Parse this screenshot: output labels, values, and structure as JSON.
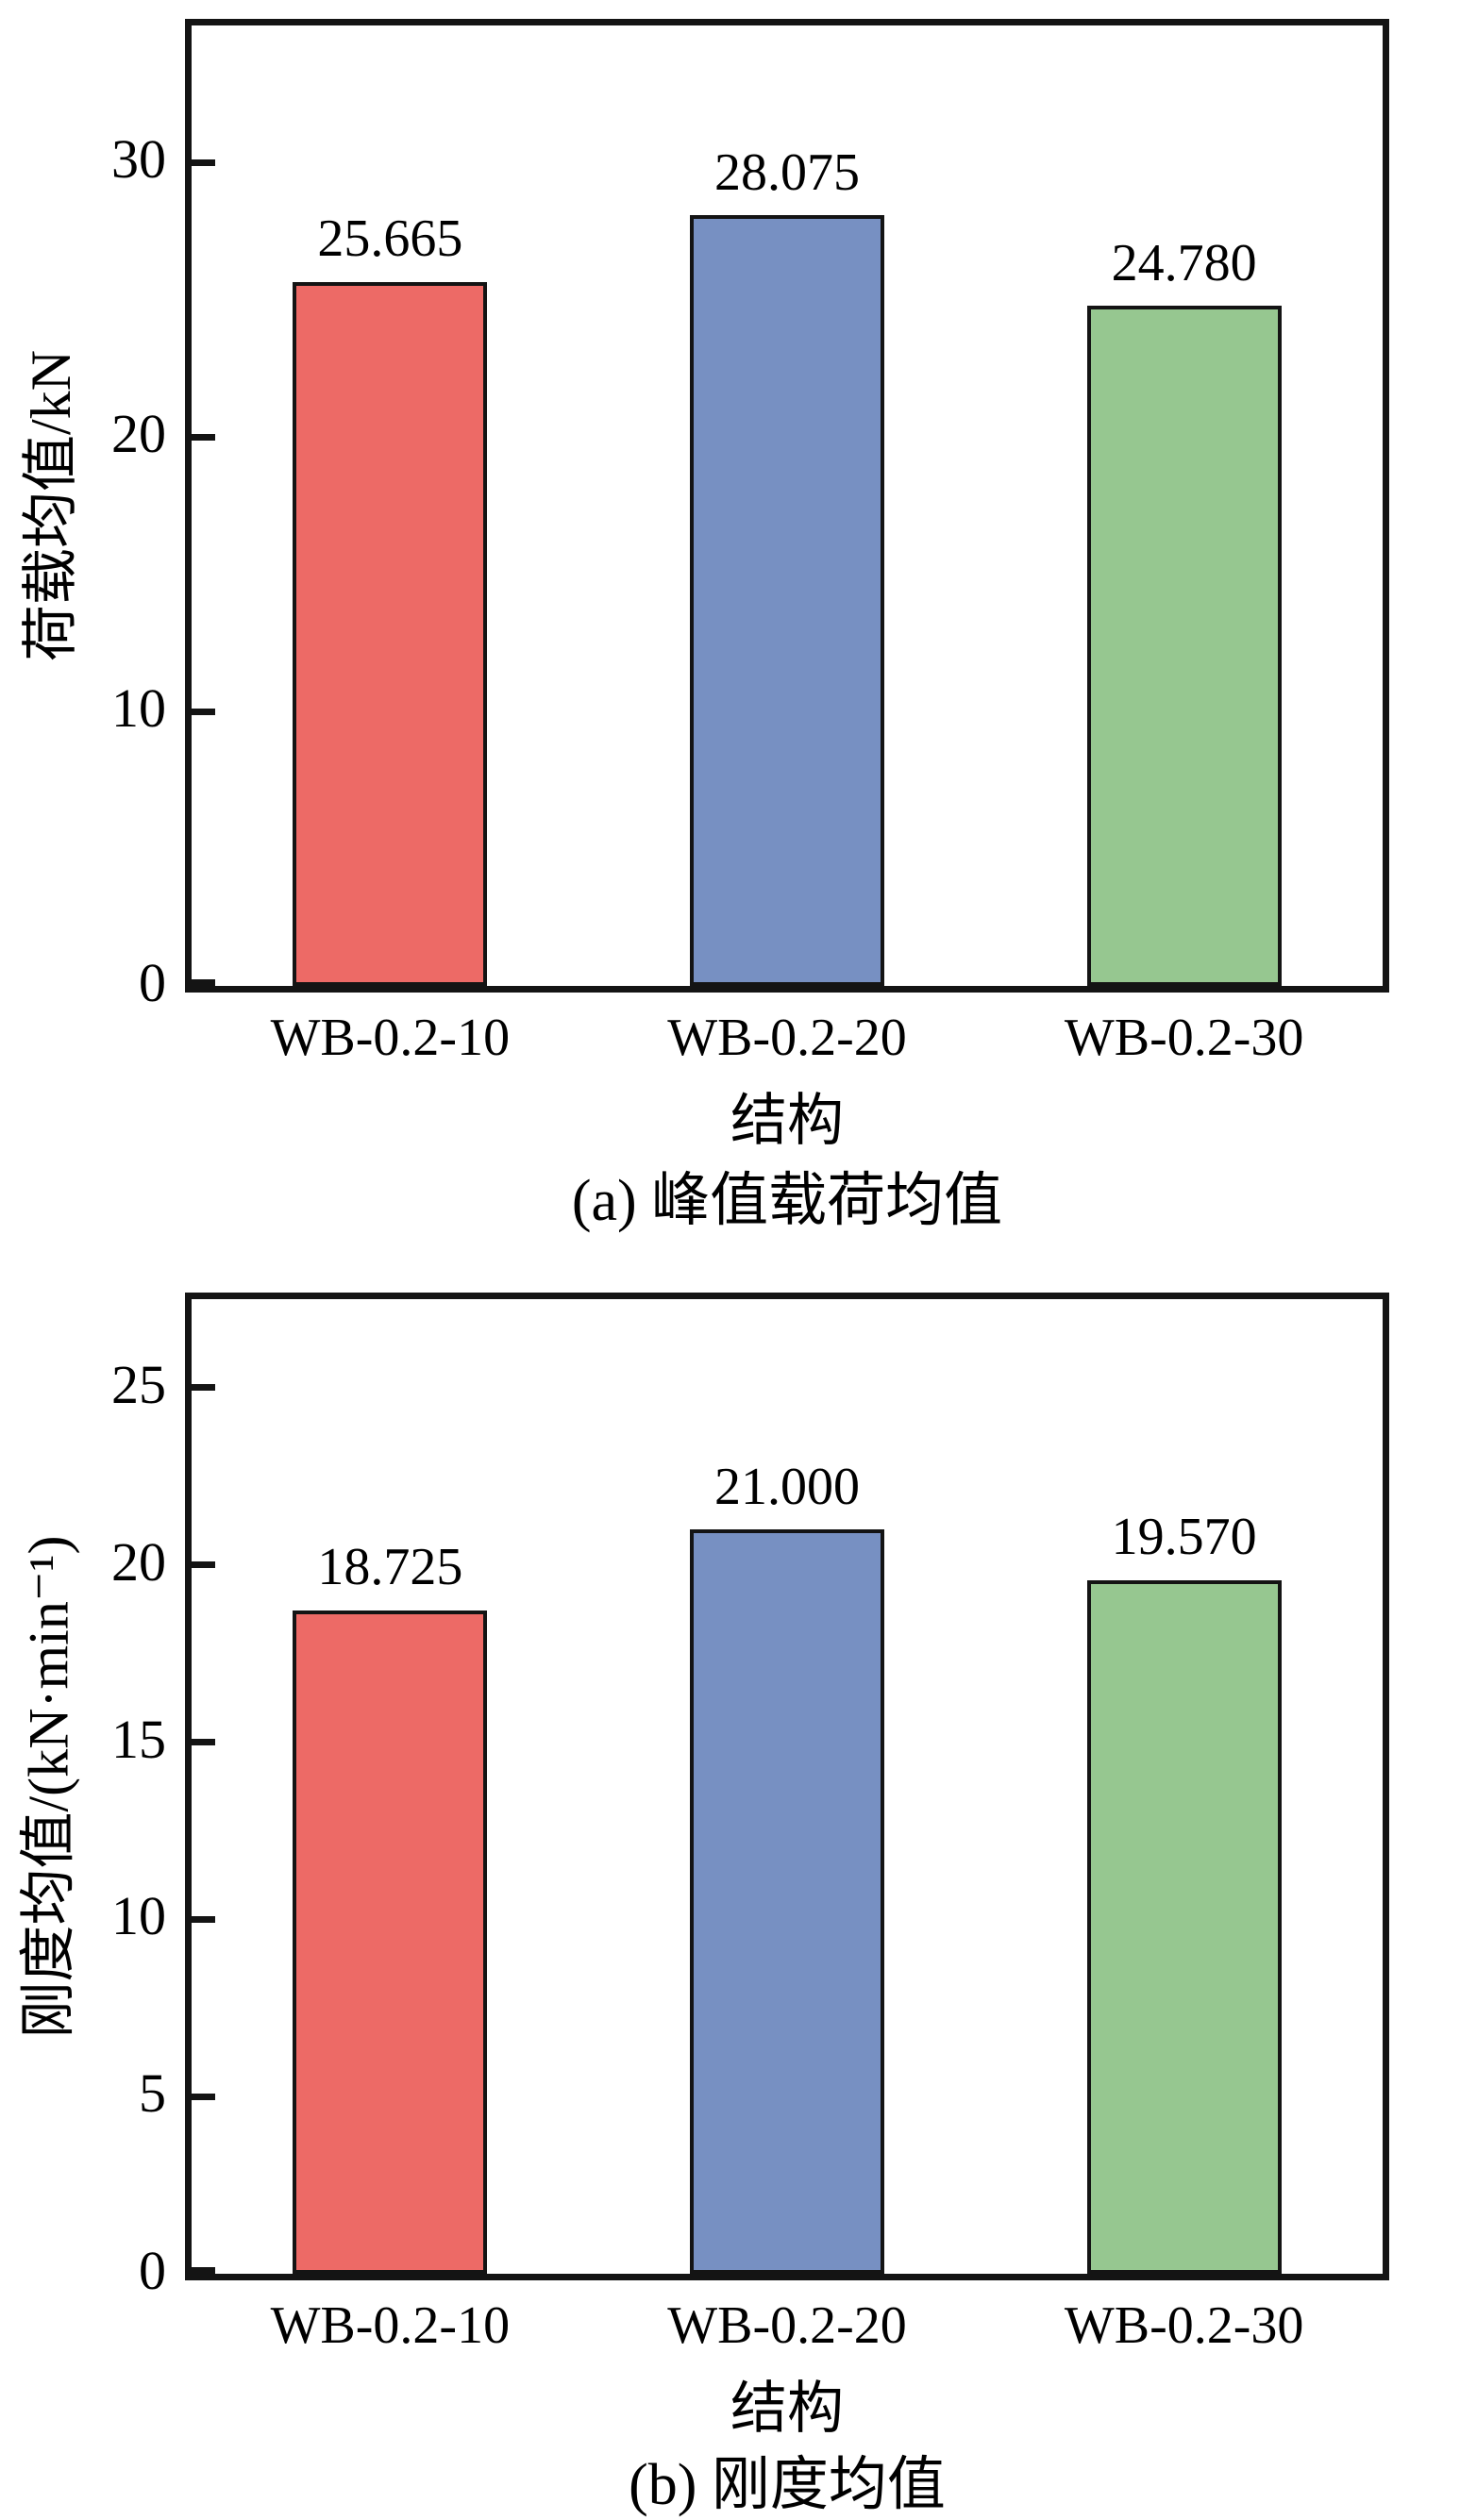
{
  "figure": {
    "background": "#ffffff",
    "axis_color": "#141414",
    "bar_border_color": "#141414"
  },
  "chart_data": [
    {
      "type": "bar",
      "title": "(a) 峰值载荷均值",
      "categories": [
        "WB-0.2-10",
        "WB-0.2-20",
        "WB-0.2-30"
      ],
      "values": [
        25.665,
        28.075,
        24.78
      ],
      "value_labels": [
        "25.665",
        "28.075",
        "24.780"
      ],
      "xlabel": "结构",
      "ylabel": "荷载均值/kN",
      "ylim": [
        0,
        35
      ],
      "yticks": [
        0,
        10,
        20,
        30
      ],
      "bar_colors": [
        "#ED6A66",
        "#7790C2",
        "#96C790"
      ],
      "grid": false,
      "legend": "none"
    },
    {
      "type": "bar",
      "title": "(b) 刚度均值",
      "categories": [
        "WB-0.2-10",
        "WB-0.2-20",
        "WB-0.2-30"
      ],
      "values": [
        18.725,
        21.0,
        19.57
      ],
      "value_labels": [
        "18.725",
        "21.000",
        "19.570"
      ],
      "xlabel": "结构",
      "ylabel": "刚度均值/(kN·min⁻¹)",
      "ylim": [
        0,
        27.5
      ],
      "yticks": [
        0,
        5,
        10,
        15,
        20,
        25
      ],
      "bar_colors": [
        "#ED6A66",
        "#7790C2",
        "#96C790"
      ],
      "grid": false,
      "legend": "none"
    }
  ]
}
